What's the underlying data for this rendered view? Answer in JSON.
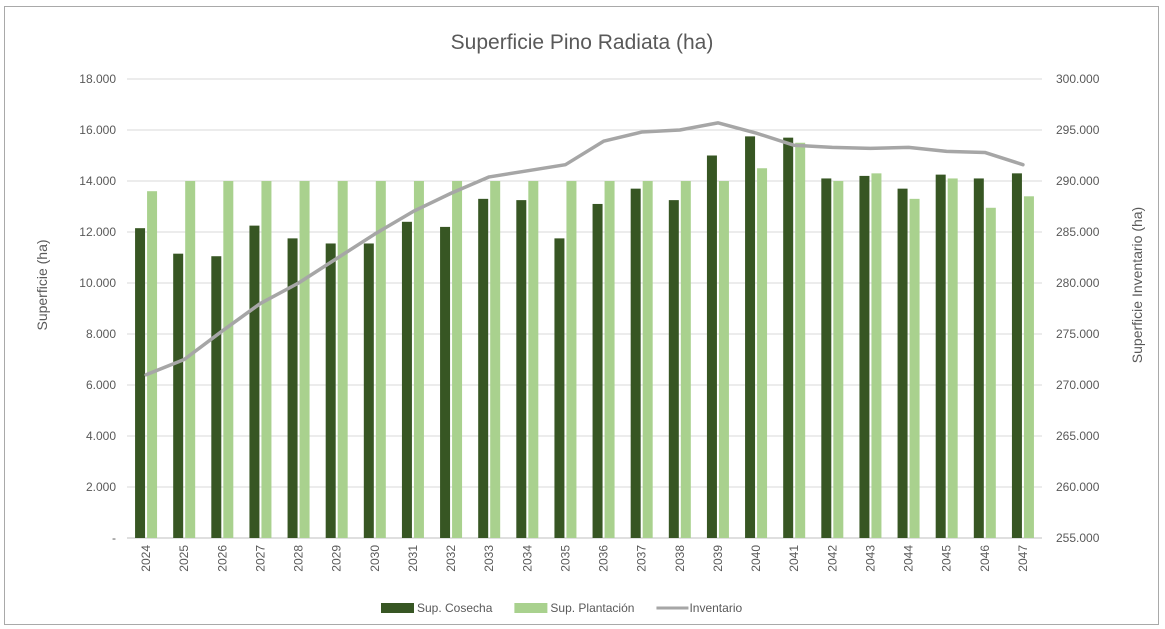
{
  "chart_data": {
    "type": "bar",
    "title": "Superficie Pino Radiata (ha)",
    "xlabel": "",
    "ylabel": "Superficie (ha)",
    "y2label": "Superficie Inventario (ha)",
    "ylim": [
      0,
      18000
    ],
    "y2lim": [
      255000,
      300000
    ],
    "y_ticks": [
      "-",
      "2.000",
      "4.000",
      "6.000",
      "8.000",
      "10.000",
      "12.000",
      "14.000",
      "16.000",
      "18.000"
    ],
    "y2_ticks": [
      "255.000",
      "260.000",
      "265.000",
      "270.000",
      "275.000",
      "280.000",
      "285.000",
      "290.000",
      "295.000",
      "300.000"
    ],
    "grid": true,
    "legend_position": "bottom",
    "categories": [
      "2024",
      "2025",
      "2026",
      "2027",
      "2028",
      "2029",
      "2030",
      "2031",
      "2032",
      "2033",
      "2034",
      "2035",
      "2036",
      "2037",
      "2038",
      "2039",
      "2040",
      "2041",
      "2042",
      "2043",
      "2044",
      "2045",
      "2046",
      "2047"
    ],
    "series": [
      {
        "name": "Sup. Cosecha",
        "kind": "bar",
        "axis": "left",
        "color": "#375623",
        "values": [
          12150,
          11150,
          11050,
          12250,
          11750,
          11550,
          11550,
          12400,
          12200,
          13300,
          13250,
          11750,
          13100,
          13700,
          13250,
          15000,
          15750,
          15700,
          14100,
          14200,
          13700,
          14250,
          14100,
          14300
        ]
      },
      {
        "name": "Sup. Plantación",
        "kind": "bar",
        "axis": "left",
        "color": "#a9d18e",
        "values": [
          13600,
          14000,
          14000,
          14000,
          14000,
          14000,
          14000,
          14000,
          14000,
          14000,
          14000,
          14000,
          14000,
          14000,
          14000,
          14000,
          14500,
          15500,
          14000,
          14300,
          13300,
          14100,
          12950,
          13400
        ]
      },
      {
        "name": "Inventario",
        "kind": "line",
        "axis": "right",
        "color": "#a6a6a6",
        "values": [
          271000,
          272500,
          275300,
          278000,
          280000,
          282400,
          284800,
          287000,
          288800,
          290400,
          291000,
          291600,
          293900,
          294800,
          295000,
          295700,
          294700,
          293500,
          293300,
          293200,
          293300,
          292900,
          292800,
          291600
        ]
      }
    ]
  }
}
